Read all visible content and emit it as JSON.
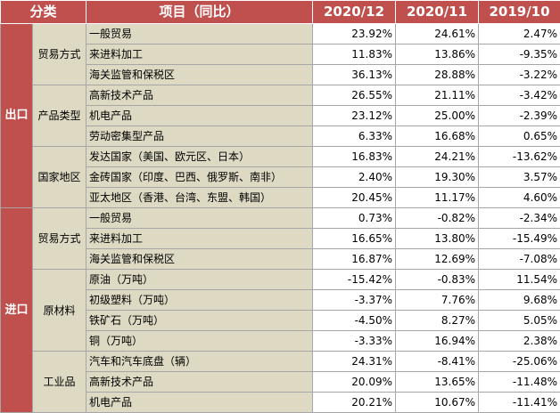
{
  "header": {
    "category": "分类",
    "item": "项目（同比）",
    "col1": "2020/12",
    "col2": "2020/11",
    "col3": "2019/10"
  },
  "export": {
    "label": "出口",
    "groups": [
      {
        "label": "贸易方式",
        "rows": [
          {
            "item": "一般贸易",
            "v1": "23.92%",
            "v2": "24.61%",
            "v3": "2.47%"
          },
          {
            "item": "来进料加工",
            "v1": "11.83%",
            "v2": "13.86%",
            "v3": "-9.35%"
          },
          {
            "item": "海关监管和保税区",
            "v1": "36.13%",
            "v2": "28.88%",
            "v3": "-3.22%"
          }
        ]
      },
      {
        "label": "产品类型",
        "rows": [
          {
            "item": "高新技术产品",
            "v1": "26.55%",
            "v2": "21.11%",
            "v3": "-3.42%"
          },
          {
            "item": "机电产品",
            "v1": "23.12%",
            "v2": "25.00%",
            "v3": "-2.39%"
          },
          {
            "item": "劳动密集型产品",
            "v1": "6.33%",
            "v2": "16.68%",
            "v3": "0.65%"
          }
        ]
      },
      {
        "label": "国家地区",
        "rows": [
          {
            "item": "发达国家（美国、欧元区、日本）",
            "v1": "16.83%",
            "v2": "24.21%",
            "v3": "-13.62%"
          },
          {
            "item": "金砖国家（印度、巴西、俄罗斯、南非）",
            "v1": "2.40%",
            "v2": "19.30%",
            "v3": "3.57%"
          },
          {
            "item": "亚太地区（香港、台湾、东盟、韩国）",
            "v1": "20.45%",
            "v2": "11.17%",
            "v3": "4.60%"
          }
        ]
      }
    ]
  },
  "import": {
    "label": "进口",
    "groups": [
      {
        "label": "贸易方式",
        "rows": [
          {
            "item": "一般贸易",
            "v1": "0.73%",
            "v2": "-0.82%",
            "v3": "-2.34%"
          },
          {
            "item": "来进料加工",
            "v1": "16.65%",
            "v2": "13.80%",
            "v3": "-15.49%"
          },
          {
            "item": "海关监管和保税区",
            "v1": "16.87%",
            "v2": "12.69%",
            "v3": "-7.08%"
          }
        ]
      },
      {
        "label": "原材料",
        "rows": [
          {
            "item": "原油（万吨）",
            "v1": "-15.42%",
            "v2": "-0.83%",
            "v3": "11.54%"
          },
          {
            "item": "初级塑料（万吨）",
            "v1": "-3.37%",
            "v2": "7.76%",
            "v3": "9.68%"
          },
          {
            "item": "铁矿石（万吨）",
            "v1": "-4.50%",
            "v2": "8.27%",
            "v3": "5.05%"
          },
          {
            "item": "铜（万吨）",
            "v1": "-3.33%",
            "v2": "16.94%",
            "v3": "2.38%"
          }
        ]
      },
      {
        "label": "工业品",
        "rows": [
          {
            "item": "汽车和汽车底盘（辆）",
            "v1": "24.31%",
            "v2": "-8.41%",
            "v3": "-25.06%"
          },
          {
            "item": "高新技术产品",
            "v1": "20.09%",
            "v2": "13.65%",
            "v3": "-11.48%"
          },
          {
            "item": "机电产品",
            "v1": "20.21%",
            "v2": "10.67%",
            "v3": "-11.41%"
          }
        ]
      }
    ]
  },
  "colors": {
    "header_bg": "#c0504d",
    "label_bg": "#ddd9c3",
    "value_bg": "#ffffff"
  }
}
